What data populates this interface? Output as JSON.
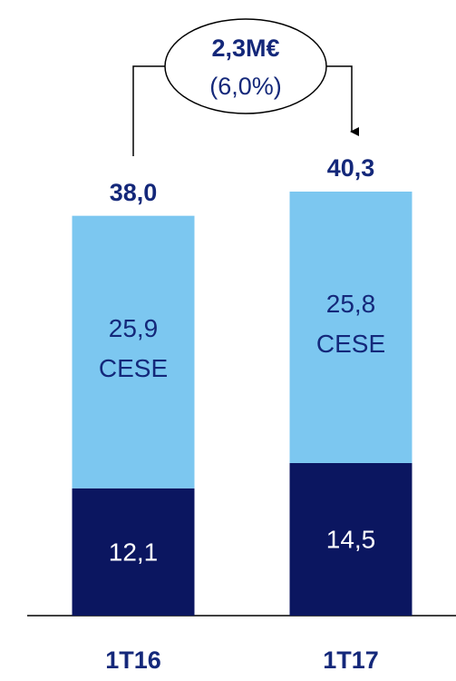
{
  "chart_data": {
    "type": "stacked_bar",
    "categories": [
      "1T16",
      "1T17"
    ],
    "series": [
      {
        "color": "#0b1660",
        "label_color": "#ffffff",
        "values": [
          12.1,
          14.5
        ],
        "value_labels": [
          "12,1",
          "14,5"
        ]
      },
      {
        "name": "CESE",
        "color": "#7cc7f0",
        "label_color": "#14287a",
        "values": [
          25.9,
          25.8
        ],
        "value_labels": [
          "25,9",
          "25,8"
        ]
      }
    ],
    "totals": [
      38.0,
      40.3
    ],
    "total_labels": [
      "38,0",
      "40,3"
    ],
    "ylim": [
      0,
      40.3
    ],
    "annotation": {
      "text": "2,3M€",
      "subtext": "(6,0%)"
    }
  }
}
